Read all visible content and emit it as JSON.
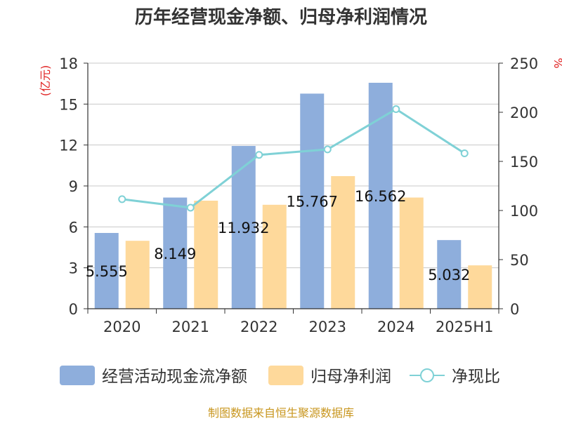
{
  "title": "历年经营现金净额、归母净利润情况",
  "source": "制图数据来自恒生聚源数据库",
  "chart_data": {
    "type": "bar",
    "title": "历年经营现金净额、归母净利润情况",
    "categories": [
      "2020",
      "2021",
      "2022",
      "2023",
      "2024",
      "2025H1"
    ],
    "ylabel_left": "(亿元)",
    "ylabel_right": "%",
    "ylim_left": [
      0,
      18
    ],
    "ylim_right": [
      0,
      250
    ],
    "yticks_left": [
      "0",
      "3",
      "6",
      "9",
      "12",
      "15",
      "18"
    ],
    "yticks_right": [
      "0",
      "50",
      "100",
      "150",
      "200",
      "250"
    ],
    "grid": true,
    "legend_position": "bottom",
    "series": [
      {
        "name": "经营活动现金流净额",
        "type": "bar",
        "axis": "left",
        "color": "#8eaedc",
        "values": [
          5.555,
          8.149,
          11.932,
          15.767,
          16.562,
          5.032
        ],
        "labels": [
          "5.555",
          "8.149",
          "11.932",
          "15.767",
          "16.562",
          "5.032"
        ]
      },
      {
        "name": "归母净利润",
        "type": "bar",
        "axis": "left",
        "color": "#fed99b",
        "values": [
          4.98,
          7.92,
          7.62,
          9.72,
          8.15,
          3.18
        ]
      },
      {
        "name": "净现比",
        "type": "line",
        "axis": "right",
        "color": "#7fd1d6",
        "values": [
          111.5,
          102.9,
          156.6,
          162.2,
          203.2,
          158.2
        ]
      }
    ]
  }
}
